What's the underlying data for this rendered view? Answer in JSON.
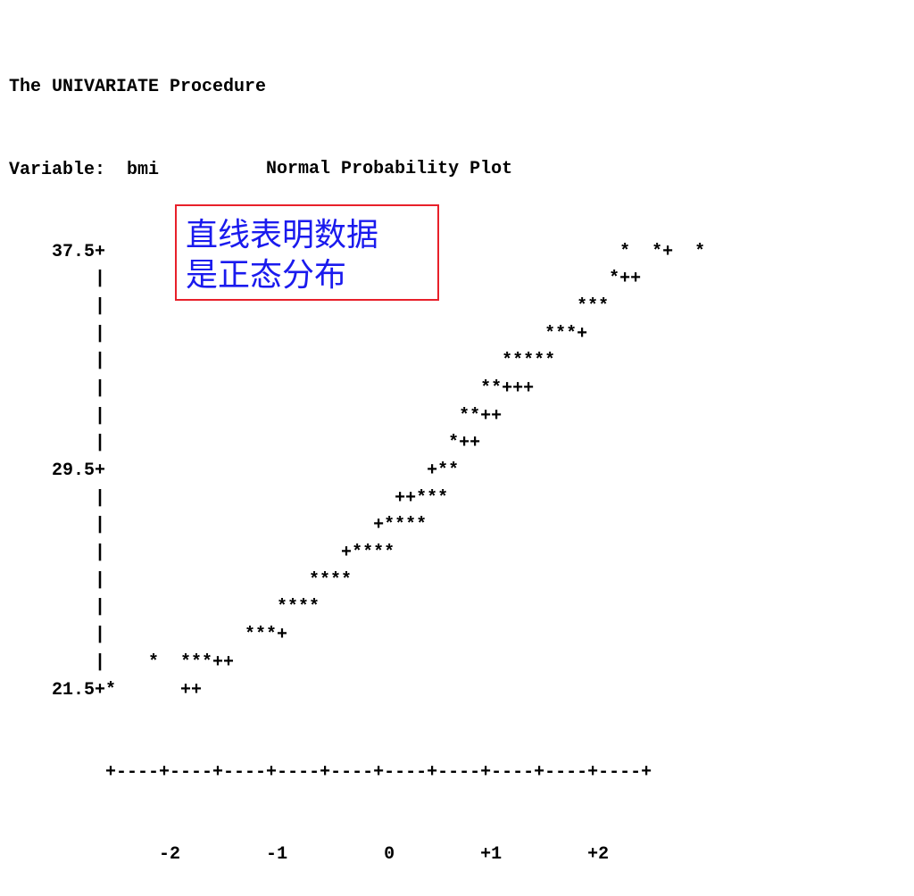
{
  "header": {
    "procedure": "The UNIVARIATE Procedure",
    "variable_line": "Variable:  bmi"
  },
  "chart_data": {
    "type": "scatter",
    "title": "Normal Probability Plot",
    "variable": "bmi",
    "ylabels": [
      "37.5+",
      "29.5+",
      "21.5+"
    ],
    "xticks": [
      "-2",
      "-1",
      "0",
      "+1",
      "+2"
    ],
    "x_axis_line": "+----+----+----+----+----+----+----+----+----+----+",
    "x_tick_line": "     -2        -1         0        +1        +2",
    "rows": [
      "    37.5+                                                *  *+  *",
      "        |                                               *++",
      "        |                                            ***",
      "        |                                         ***+",
      "        |                                     *****",
      "        |                                   **+++",
      "        |                                 **++",
      "        |                                *++",
      "    29.5+                              +**",
      "        |                           ++***",
      "        |                         +****",
      "        |                      +****",
      "        |                   ****",
      "        |                ****",
      "        |             ***+",
      "        |    *  ***++",
      "    21.5+*      ++"
    ]
  },
  "annotation": {
    "text": "直线表明数据\n是正态分布",
    "border_color": "#e8202a",
    "text_color": "#1a1aee"
  }
}
